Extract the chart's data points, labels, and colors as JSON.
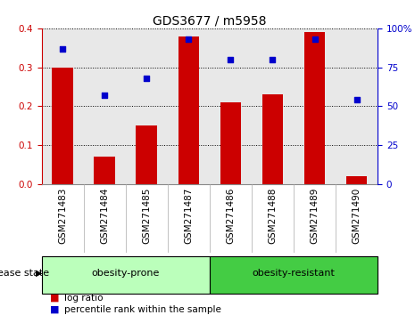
{
  "title": "GDS3677 / m5958",
  "samples": [
    "GSM271483",
    "GSM271484",
    "GSM271485",
    "GSM271487",
    "GSM271486",
    "GSM271488",
    "GSM271489",
    "GSM271490"
  ],
  "log_ratio": [
    0.3,
    0.07,
    0.15,
    0.38,
    0.21,
    0.23,
    0.39,
    0.02
  ],
  "percentile_rank": [
    87,
    57,
    68,
    93,
    80,
    80,
    93,
    54
  ],
  "ylim_left": [
    0,
    0.4
  ],
  "ylim_right": [
    0,
    100
  ],
  "yticks_left": [
    0,
    0.1,
    0.2,
    0.3,
    0.4
  ],
  "yticks_right": [
    0,
    25,
    50,
    75,
    100
  ],
  "bar_color": "#cc0000",
  "dot_color": "#0000cc",
  "groups": [
    {
      "label": "obesity-prone",
      "start": 0,
      "end": 3,
      "color": "#bbffbb"
    },
    {
      "label": "obesity-resistant",
      "start": 4,
      "end": 7,
      "color": "#44cc44"
    }
  ],
  "disease_state_label": "disease state",
  "legend_bar_label": "log ratio",
  "legend_dot_label": "percentile rank within the sample",
  "plot_bg_color": "#e8e8e8",
  "title_fontsize": 10,
  "tick_fontsize": 7.5,
  "label_fontsize": 8,
  "group_label_fontsize": 8,
  "disease_state_fontsize": 8
}
